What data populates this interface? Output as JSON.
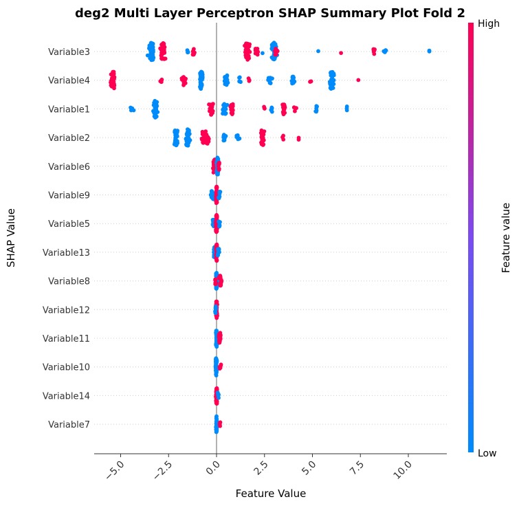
{
  "chart_data": {
    "type": "scatter",
    "subtype": "shap-beeswarm",
    "title": "deg2 Multi Layer Perceptron SHAP Summary Plot Fold 2",
    "xlabel": "Feature Value",
    "ylabel": "SHAP Value",
    "xlim": [
      -6.4,
      12.0
    ],
    "xticks": [
      -5.0,
      -2.5,
      0.0,
      2.5,
      5.0,
      7.5,
      10.0
    ],
    "xtick_labels": [
      "−5.0",
      "−2.5",
      "0.0",
      "2.5",
      "5.0",
      "7.5",
      "10.0"
    ],
    "zero_line": 0,
    "colorbar": {
      "label": "Feature value",
      "high_label": "High",
      "low_label": "Low",
      "low_color": "#008bfb",
      "high_color": "#ff0052"
    },
    "features": [
      {
        "name": "Variable3",
        "clusters": [
          {
            "x": -3.4,
            "n": 60,
            "spread": 0.25,
            "color": "low"
          },
          {
            "x": -2.8,
            "n": 45,
            "spread": 0.2,
            "color": "high"
          },
          {
            "x": -1.5,
            "n": 3,
            "spread": 0.1,
            "color": "low"
          },
          {
            "x": -1.2,
            "n": 10,
            "spread": 0.12,
            "color": "high"
          },
          {
            "x": 1.6,
            "n": 40,
            "spread": 0.2,
            "color": "high"
          },
          {
            "x": 2.1,
            "n": 8,
            "spread": 0.2,
            "color": "high"
          },
          {
            "x": 2.4,
            "n": 1,
            "spread": 0.02,
            "color": "low"
          },
          {
            "x": 3.0,
            "n": 45,
            "spread": 0.22,
            "color": "low"
          },
          {
            "x": 3.1,
            "n": 10,
            "spread": 0.15,
            "color": "high"
          },
          {
            "x": 5.3,
            "n": 1,
            "spread": 0.02,
            "color": "low"
          },
          {
            "x": 6.5,
            "n": 1,
            "spread": 0.02,
            "color": "high"
          },
          {
            "x": 8.2,
            "n": 6,
            "spread": 0.08,
            "color": "high"
          },
          {
            "x": 8.8,
            "n": 4,
            "spread": 0.1,
            "color": "low"
          },
          {
            "x": 11.1,
            "n": 2,
            "spread": 0.03,
            "color": "low"
          }
        ]
      },
      {
        "name": "Variable4",
        "clusters": [
          {
            "x": -5.4,
            "n": 40,
            "spread": 0.2,
            "color": "high"
          },
          {
            "x": -2.9,
            "n": 5,
            "spread": 0.08,
            "color": "high"
          },
          {
            "x": -1.7,
            "n": 20,
            "spread": 0.15,
            "color": "high"
          },
          {
            "x": -0.8,
            "n": 50,
            "spread": 0.15,
            "color": "low"
          },
          {
            "x": 0.5,
            "n": 20,
            "spread": 0.15,
            "color": "low"
          },
          {
            "x": 1.2,
            "n": 6,
            "spread": 0.12,
            "color": "low"
          },
          {
            "x": 1.7,
            "n": 3,
            "spread": 0.12,
            "color": "high"
          },
          {
            "x": 2.8,
            "n": 10,
            "spread": 0.2,
            "color": "low"
          },
          {
            "x": 4.0,
            "n": 15,
            "spread": 0.12,
            "color": "low"
          },
          {
            "x": 4.9,
            "n": 3,
            "spread": 0.1,
            "color": "high"
          },
          {
            "x": 6.0,
            "n": 40,
            "spread": 0.18,
            "color": "low"
          },
          {
            "x": 7.4,
            "n": 1,
            "spread": 0.02,
            "color": "high"
          }
        ]
      },
      {
        "name": "Variable1",
        "clusters": [
          {
            "x": -4.4,
            "n": 4,
            "spread": 0.15,
            "color": "low"
          },
          {
            "x": -3.2,
            "n": 50,
            "spread": 0.18,
            "color": "low"
          },
          {
            "x": -0.3,
            "n": 25,
            "spread": 0.22,
            "color": "high"
          },
          {
            "x": 0.4,
            "n": 20,
            "spread": 0.2,
            "color": "low"
          },
          {
            "x": 0.8,
            "n": 20,
            "spread": 0.12,
            "color": "high"
          },
          {
            "x": 2.5,
            "n": 3,
            "spread": 0.08,
            "color": "high"
          },
          {
            "x": 2.9,
            "n": 6,
            "spread": 0.12,
            "color": "low"
          },
          {
            "x": 3.5,
            "n": 20,
            "spread": 0.12,
            "color": "high"
          },
          {
            "x": 4.1,
            "n": 4,
            "spread": 0.12,
            "color": "high"
          },
          {
            "x": 5.2,
            "n": 6,
            "spread": 0.12,
            "color": "low"
          },
          {
            "x": 6.8,
            "n": 3,
            "spread": 0.04,
            "color": "low"
          }
        ]
      },
      {
        "name": "Variable2",
        "clusters": [
          {
            "x": -2.1,
            "n": 35,
            "spread": 0.18,
            "color": "low"
          },
          {
            "x": -1.5,
            "n": 40,
            "spread": 0.18,
            "color": "low"
          },
          {
            "x": -0.6,
            "n": 30,
            "spread": 0.3,
            "color": "high"
          },
          {
            "x": 0.4,
            "n": 8,
            "spread": 0.18,
            "color": "low"
          },
          {
            "x": 1.1,
            "n": 6,
            "spread": 0.25,
            "color": "low"
          },
          {
            "x": 2.4,
            "n": 35,
            "spread": 0.15,
            "color": "high"
          },
          {
            "x": 3.5,
            "n": 3,
            "spread": 0.1,
            "color": "high"
          },
          {
            "x": 4.3,
            "n": 2,
            "spread": 0.04,
            "color": "high"
          }
        ]
      },
      {
        "name": "Variable6",
        "clusters": [
          {
            "x": -0.1,
            "n": 30,
            "spread": 0.12,
            "color": "high"
          },
          {
            "x": 0.05,
            "n": 40,
            "spread": 0.06,
            "color": "low"
          },
          {
            "x": 0.12,
            "n": 10,
            "spread": 0.08,
            "color": "high"
          }
        ]
      },
      {
        "name": "Variable9",
        "clusters": [
          {
            "x": -0.2,
            "n": 15,
            "spread": 0.15,
            "color": "low"
          },
          {
            "x": 0.0,
            "n": 60,
            "spread": 0.05,
            "color": "high"
          },
          {
            "x": 0.15,
            "n": 10,
            "spread": 0.1,
            "color": "low"
          }
        ]
      },
      {
        "name": "Variable5",
        "clusters": [
          {
            "x": -0.15,
            "n": 15,
            "spread": 0.12,
            "color": "low"
          },
          {
            "x": 0.0,
            "n": 60,
            "spread": 0.07,
            "color": "high"
          },
          {
            "x": 0.15,
            "n": 8,
            "spread": 0.1,
            "color": "low"
          }
        ]
      },
      {
        "name": "Variable13",
        "clusters": [
          {
            "x": -0.1,
            "n": 20,
            "spread": 0.08,
            "color": "low"
          },
          {
            "x": 0.0,
            "n": 50,
            "spread": 0.05,
            "color": "high"
          },
          {
            "x": 0.1,
            "n": 10,
            "spread": 0.08,
            "color": "low"
          }
        ]
      },
      {
        "name": "Variable8",
        "clusters": [
          {
            "x": 0.0,
            "n": 50,
            "spread": 0.05,
            "color": "low"
          },
          {
            "x": 0.2,
            "n": 20,
            "spread": 0.1,
            "color": "high"
          },
          {
            "x": -0.05,
            "n": 10,
            "spread": 0.05,
            "color": "high"
          }
        ]
      },
      {
        "name": "Variable12",
        "clusters": [
          {
            "x": 0.0,
            "n": 60,
            "spread": 0.05,
            "color": "high"
          },
          {
            "x": -0.05,
            "n": 10,
            "spread": 0.04,
            "color": "low"
          }
        ]
      },
      {
        "name": "Variable11",
        "clusters": [
          {
            "x": 0.0,
            "n": 50,
            "spread": 0.05,
            "color": "low"
          },
          {
            "x": 0.18,
            "n": 20,
            "spread": 0.09,
            "color": "high"
          }
        ]
      },
      {
        "name": "Variable10",
        "clusters": [
          {
            "x": -0.02,
            "n": 50,
            "spread": 0.05,
            "color": "low"
          },
          {
            "x": 0.2,
            "n": 6,
            "spread": 0.08,
            "color": "high"
          }
        ]
      },
      {
        "name": "Variable14",
        "clusters": [
          {
            "x": 0.0,
            "n": 50,
            "spread": 0.06,
            "color": "high"
          },
          {
            "x": 0.1,
            "n": 8,
            "spread": 0.08,
            "color": "low"
          }
        ]
      },
      {
        "name": "Variable7",
        "clusters": [
          {
            "x": 0.0,
            "n": 45,
            "spread": 0.04,
            "color": "low"
          },
          {
            "x": 0.18,
            "n": 5,
            "spread": 0.06,
            "color": "high"
          }
        ]
      }
    ]
  }
}
